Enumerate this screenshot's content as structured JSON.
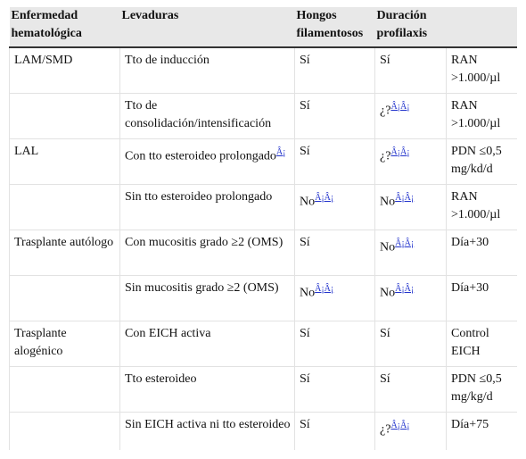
{
  "table": {
    "header": [
      "Enfermedad hematológica",
      "Levaduras",
      "Hongos filamentosos",
      "Duración profilaxis"
    ],
    "rows": [
      [
        "LAM/SMD",
        "Tto de inducción",
        "Sí",
        "Sí",
        "RAN >1.000/µl"
      ],
      [
        null,
        "Tto de consolidación/intensificación",
        "Sí",
        {
          "text": "¿?",
          "sup": "Â¡Â¡"
        },
        "RAN >1.000/µl"
      ],
      [
        "LAL",
        {
          "text": "Con tto esteroideo prolongado",
          "sup": "Â¡"
        },
        "Sí",
        {
          "text": "¿?",
          "sup": "Â¡Â¡"
        },
        "PDN ≤0,5 mg/kd/d"
      ],
      [
        null,
        "Sin tto esteroideo prolongado",
        {
          "text": "No",
          "sup": "Â¡Â¡"
        },
        {
          "text": "No",
          "sup": "Â¡Â¡"
        },
        "RAN >1.000/µl"
      ],
      [
        "Trasplante autólogo",
        "Con mucositis grado ≥2 (OMS)",
        "Sí",
        {
          "text": "No",
          "sup": "Â¡Â¡"
        },
        "Día+30"
      ],
      [
        null,
        "Sin mucositis grado ≥2 (OMS)",
        {
          "text": "No",
          "sup": "Â¡Â¡"
        },
        {
          "text": "No",
          "sup": "Â¡Â¡"
        },
        "Día+30"
      ],
      [
        "Trasplante alogénico",
        "Con EICH activa",
        "Sí",
        "Sí",
        "Control EICH"
      ],
      [
        null,
        "Tto esteroideo",
        "Sí",
        "Sí",
        "PDN ≤0,5 mg/kg/d"
      ],
      [
        null,
        "Sin EICH activa ni tto esteroideo",
        "Sí",
        {
          "text": "¿?",
          "sup": "Â¡Â¡"
        },
        "Día+75"
      ]
    ]
  }
}
